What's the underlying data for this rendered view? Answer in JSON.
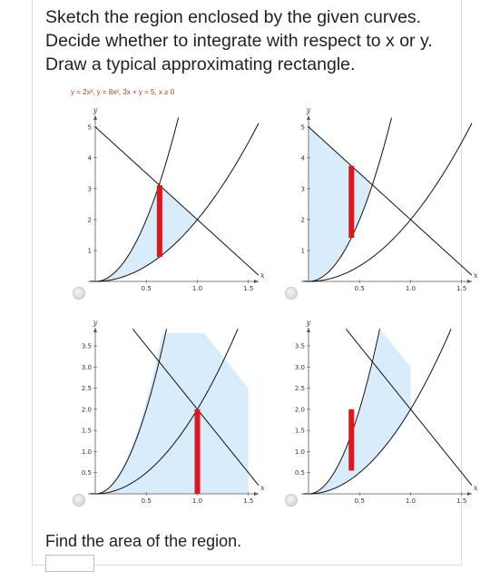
{
  "question": {
    "lines": [
      "Sketch the region enclosed by the given curves.",
      "Decide whether to integrate with respect to x or y.",
      "Draw a typical approximating rectangle."
    ],
    "curves": "y = 2x², y = 8x², 3x + y = 5, x ≥ 0"
  },
  "options": [
    {
      "id": "A",
      "shading": "between y = 2x² and the boundary y = min(8x², 5 − 3x), 0 ≤ x ≤ 5/3",
      "rect_x": 0.65
    },
    {
      "id": "B",
      "shading": "between y = 8x² and y = 5 − 3x, 0 ≤ x ≤ 0.625",
      "rect_x": 0.45
    },
    {
      "id": "C",
      "shading": "between y = 2x² and the boundary y = min(8x², 5 − 3x) cut at x = 1.5",
      "rect_x": 1.0
    },
    {
      "id": "D",
      "shading": "between 2x² and min(8x², 5 − 3x) over 0.5 ≤ x ≤ 1",
      "rect_x": 0.45
    }
  ],
  "chart_data": [
    {
      "type": "line",
      "panel": "top-left",
      "xlabel": "x",
      "ylabel": "y",
      "xticks": [
        "0.5",
        "1.0",
        "1.5"
      ],
      "yticks": [
        "1",
        "2",
        "3",
        "4",
        "5"
      ],
      "xlim": [
        0,
        1.6
      ],
      "ylim": [
        0,
        5.2
      ],
      "series": [
        {
          "f": "2x^2"
        },
        {
          "f": "8x^2"
        },
        {
          "f": "5-3x"
        }
      ]
    },
    {
      "type": "line",
      "panel": "top-right",
      "xlabel": "x",
      "ylabel": "y",
      "xticks": [
        "0.5",
        "1.0",
        "1.5"
      ],
      "yticks": [
        "1",
        "2",
        "3",
        "4",
        "5"
      ],
      "xlim": [
        0,
        1.6
      ],
      "ylim": [
        0,
        5.2
      ],
      "series": [
        {
          "f": "2x^2"
        },
        {
          "f": "8x^2"
        },
        {
          "f": "5-3x"
        }
      ]
    },
    {
      "type": "line",
      "panel": "bottom-left",
      "xlabel": "x",
      "ylabel": "y",
      "xticks": [
        "0.5",
        "1.0",
        "1.5"
      ],
      "yticks": [
        "0.5",
        "1.0",
        "1.5",
        "2.0",
        "2.5",
        "3.0",
        "3.5"
      ],
      "xlim": [
        0,
        1.6
      ],
      "ylim": [
        0,
        3.8
      ],
      "series": [
        {
          "f": "2x^2"
        },
        {
          "f": "5-3x"
        }
      ]
    },
    {
      "type": "line",
      "panel": "bottom-right",
      "xlabel": "x",
      "ylabel": "y",
      "xticks": [
        "0.5",
        "1.0",
        "1.5"
      ],
      "yticks": [
        "0.5",
        "1.0",
        "1.5",
        "2.0",
        "2.5",
        "3.0",
        "3.5"
      ],
      "xlim": [
        0,
        1.6
      ],
      "ylim": [
        0,
        3.8
      ],
      "series": [
        {
          "f": "2x^2"
        },
        {
          "f": "5-3x"
        }
      ]
    }
  ],
  "find_area": "Find the area of the region.",
  "colors": {
    "shade": "#d9ecfb",
    "rect": "#e0161d",
    "curve": "#111111",
    "radio": "#d0d0d0"
  }
}
